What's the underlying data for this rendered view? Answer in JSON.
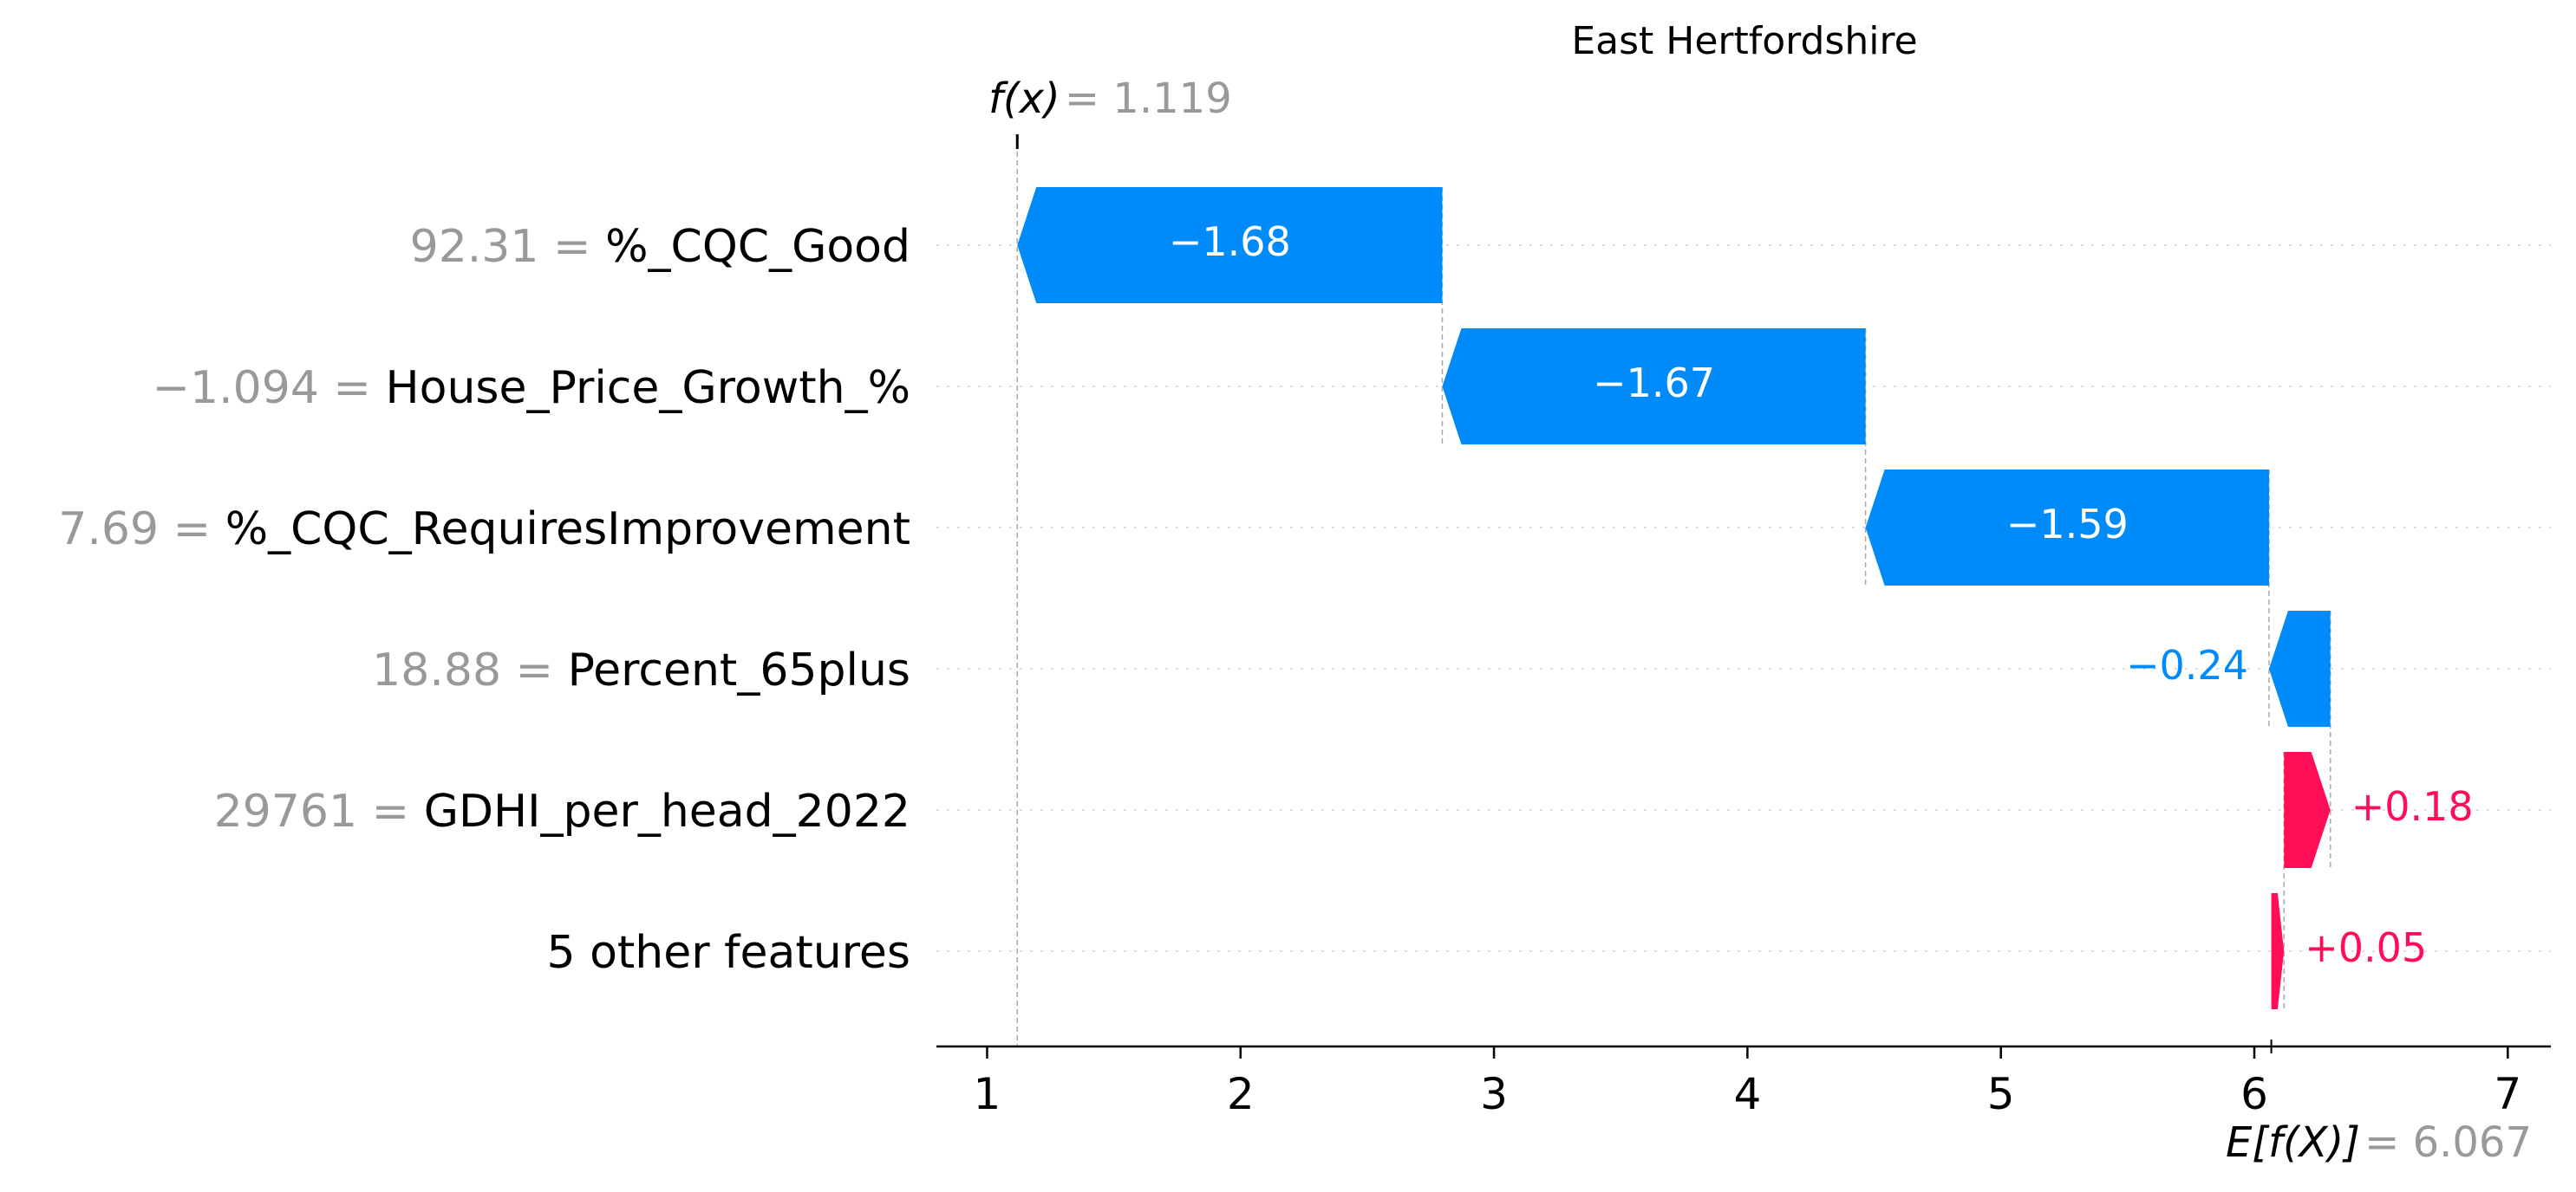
{
  "chart_data": {
    "type": "bar",
    "subtype": "waterfall",
    "title": "East Hertfordshire",
    "output_label": "f(x)",
    "output_value": "1.119",
    "base_label": "E[f(X)]",
    "base_value": "6.067",
    "xlim": [
      0.8,
      7.17
    ],
    "xticks": [
      1,
      2,
      3,
      4,
      5,
      6,
      7
    ],
    "grid": "horizontal dotted guide lines per row",
    "colors": {
      "positive": "#ff0d57",
      "negative": "#008bfb",
      "value_text": "#999999",
      "guide": "#cccccc"
    },
    "features": [
      {
        "value": "92.31",
        "name": "%_CQC_Good",
        "shap": -1.68,
        "label": "−1.68",
        "start": 2.796,
        "end": 1.119
      },
      {
        "value": "−1.094",
        "name": "House_Price_Growth_%",
        "shap": -1.67,
        "label": "−1.67",
        "start": 4.466,
        "end": 2.796
      },
      {
        "value": "7.69",
        "name": "%_CQC_RequiresImprovement",
        "shap": -1.59,
        "label": "−1.59",
        "start": 6.058,
        "end": 4.466
      },
      {
        "value": "18.88",
        "name": "Percent_65plus",
        "shap": -0.24,
        "label": "−0.24",
        "start": 6.3,
        "end": 6.058
      },
      {
        "value": "29761",
        "name": "GDHI_per_head_2022",
        "shap": 0.18,
        "label": "+0.18",
        "start": 6.117,
        "end": 6.3
      },
      {
        "value": "",
        "name": "5 other features",
        "shap": 0.05,
        "label": "+0.05",
        "start": 6.067,
        "end": 6.117
      }
    ]
  }
}
